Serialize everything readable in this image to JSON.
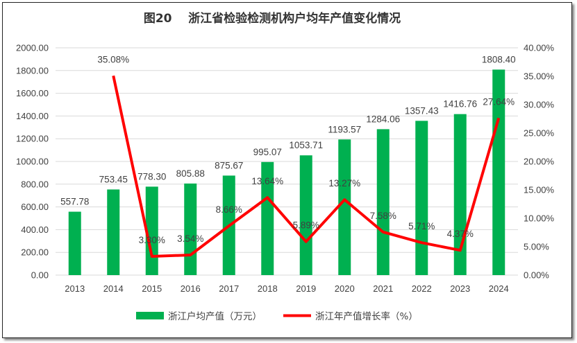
{
  "chart_data": {
    "type": "bar+line",
    "title": "图20    浙江省检验检测机构户均年产值变化情况",
    "categories": [
      "2013",
      "2014",
      "2015",
      "2016",
      "2017",
      "2018",
      "2019",
      "2020",
      "2021",
      "2022",
      "2023",
      "2024"
    ],
    "series": [
      {
        "name": "浙江户均产值（万元）",
        "type": "bar",
        "axis": "left",
        "color": "#00B050",
        "values": [
          557.78,
          753.45,
          778.3,
          805.88,
          875.67,
          995.07,
          1053.71,
          1193.57,
          1284.06,
          1357.43,
          1416.76,
          1808.4
        ],
        "labels": [
          "557.78",
          "753.45",
          "778.30",
          "805.88",
          "875.67",
          "995.07",
          "1053.71",
          "1193.57",
          "1284.06",
          "1357.43",
          "1416.76",
          "1808.40"
        ]
      },
      {
        "name": "浙江年产值增长率（%）",
        "type": "line",
        "axis": "right",
        "color": "#FF0000",
        "values": [
          null,
          35.08,
          3.3,
          3.54,
          8.66,
          13.64,
          5.89,
          13.27,
          7.58,
          5.71,
          4.37,
          27.64
        ],
        "labels": [
          "",
          "35.08%",
          "3.30%",
          "3.54%",
          "8.66%",
          "13.64%",
          "5.89%",
          "13.27%",
          "7.58%",
          "5.71%",
          "4.37%",
          "27.64%"
        ]
      }
    ],
    "y_left": {
      "range": [
        0,
        2000
      ],
      "ticks": [
        "0.00",
        "200.00",
        "400.00",
        "600.00",
        "800.00",
        "1000.00",
        "1200.00",
        "1400.00",
        "1600.00",
        "1800.00",
        "2000.00"
      ]
    },
    "y_right": {
      "range": [
        0,
        40
      ],
      "ticks": [
        "0.00%",
        "5.00%",
        "10.00%",
        "15.00%",
        "20.00%",
        "25.00%",
        "30.00%",
        "35.00%",
        "40.00%"
      ]
    },
    "grid": true,
    "legend_position": "bottom"
  }
}
